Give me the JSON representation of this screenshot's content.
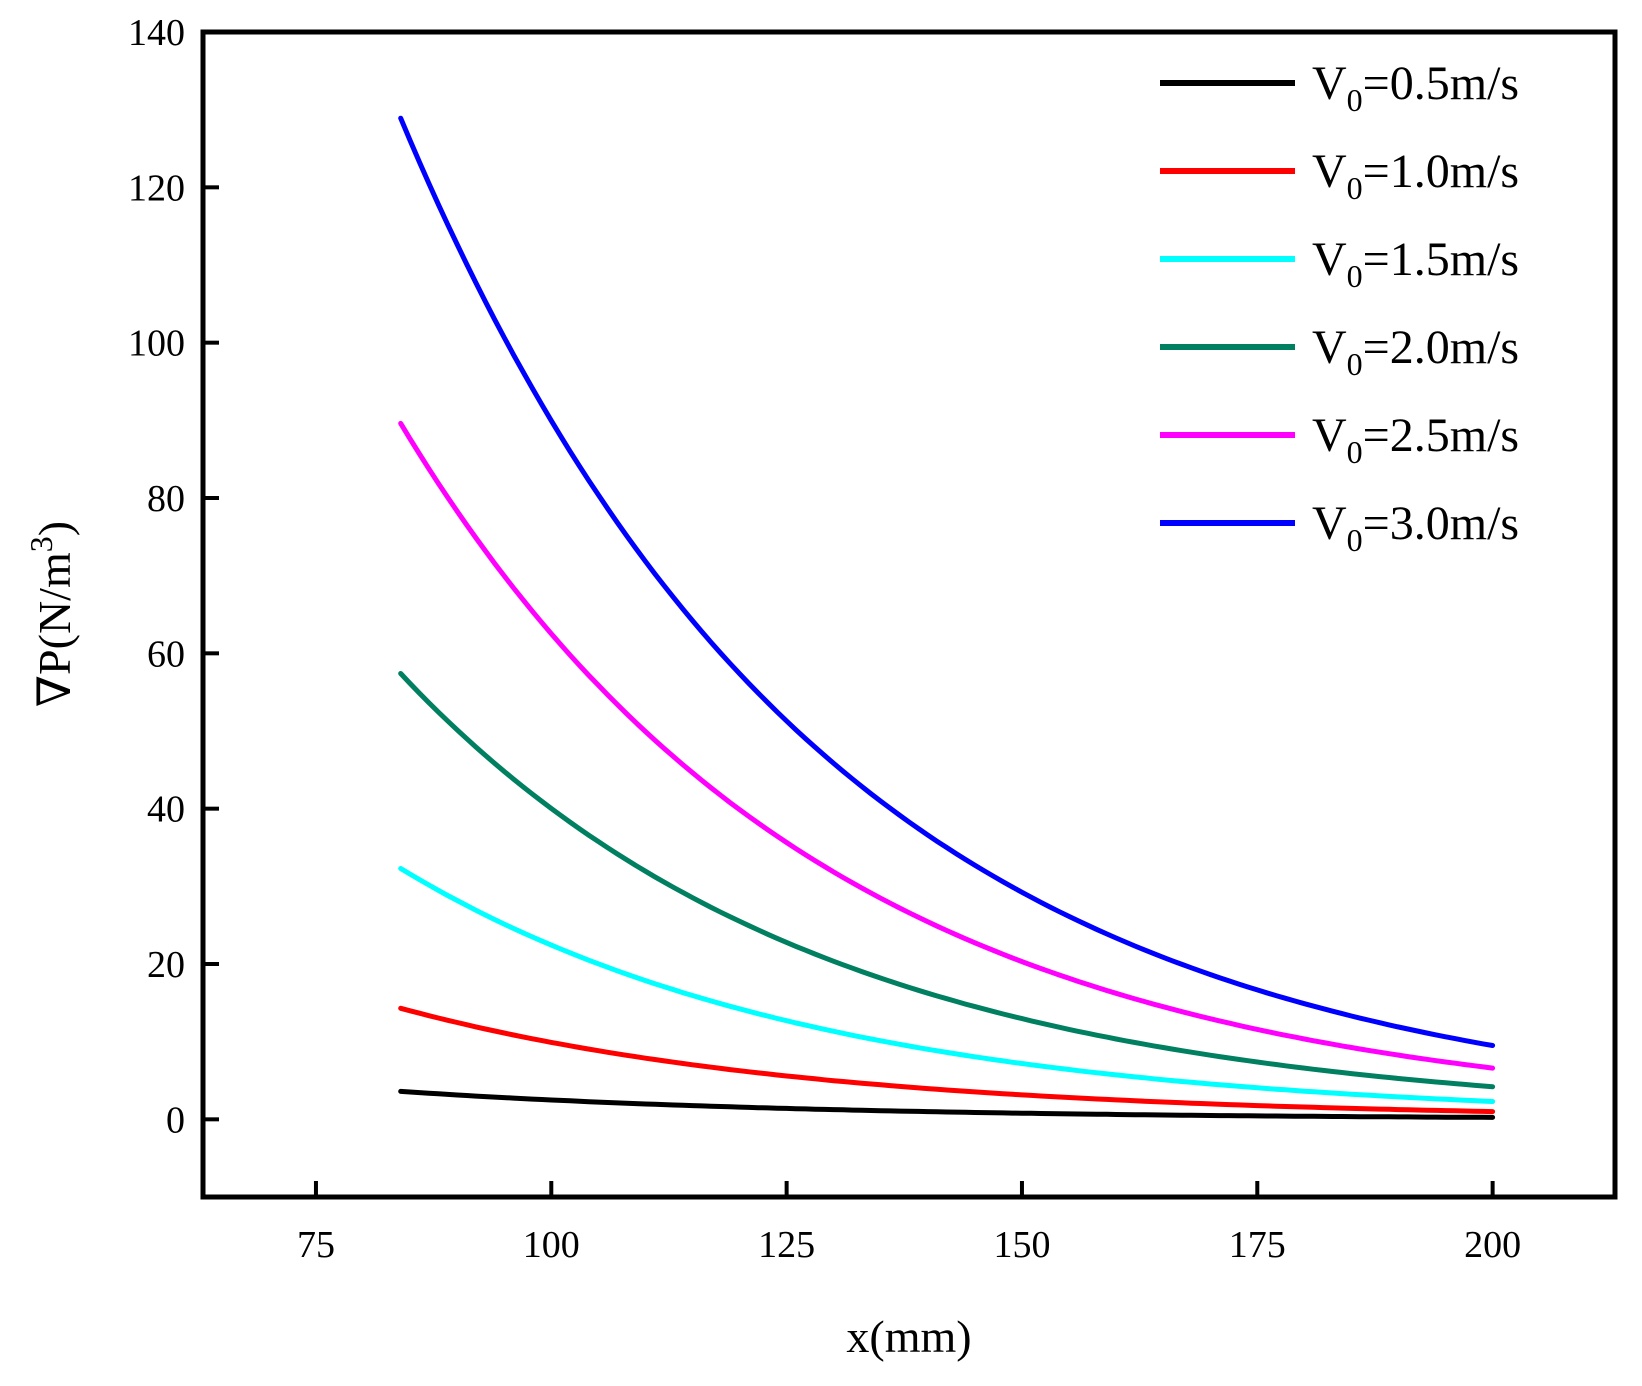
{
  "chart_data": {
    "type": "line",
    "title": "",
    "xlabel": "x(mm)",
    "ylabel_parts": {
      "prefix": "∇P(N/m",
      "sup": "3",
      "suffix": ")"
    },
    "xlim": [
      63,
      213
    ],
    "ylim": [
      -10,
      140
    ],
    "xticks": [
      75,
      100,
      125,
      150,
      175,
      200
    ],
    "yticks": [
      0,
      20,
      40,
      60,
      80,
      100,
      120,
      140
    ],
    "grid": false,
    "legend_position": "top-right",
    "x_range": [
      84,
      200
    ],
    "series": [
      {
        "name": "V0=0.5m/s",
        "label_main": "V",
        "label_sub": "0",
        "label_rest": "=0.5m/s",
        "color": "#000000",
        "start_value": 3.6,
        "end_value": 0.25
      },
      {
        "name": "V0=1.0m/s",
        "label_main": "V",
        "label_sub": "0",
        "label_rest": "=1.0m/s",
        "color": "#ff0000",
        "start_value": 14.3,
        "end_value": 1.0
      },
      {
        "name": "V0=1.5m/s",
        "label_main": "V",
        "label_sub": "0",
        "label_rest": "=1.5m/s",
        "color": "#00ffff",
        "start_value": 32.3,
        "end_value": 2.3
      },
      {
        "name": "V0=2.0m/s",
        "label_main": "V",
        "label_sub": "0",
        "label_rest": "=2.0m/s",
        "color": "#008060",
        "start_value": 57.4,
        "end_value": 4.2
      },
      {
        "name": "V0=2.5m/s",
        "label_main": "V",
        "label_sub": "0",
        "label_rest": "=2.5m/s",
        "color": "#ff00ff",
        "start_value": 89.6,
        "end_value": 6.6
      },
      {
        "name": "V0=3.0m/s",
        "label_main": "V",
        "label_sub": "0",
        "label_rest": "=3.0m/s",
        "color": "#0000ff",
        "start_value": 128.9,
        "end_value": 9.5
      }
    ]
  }
}
